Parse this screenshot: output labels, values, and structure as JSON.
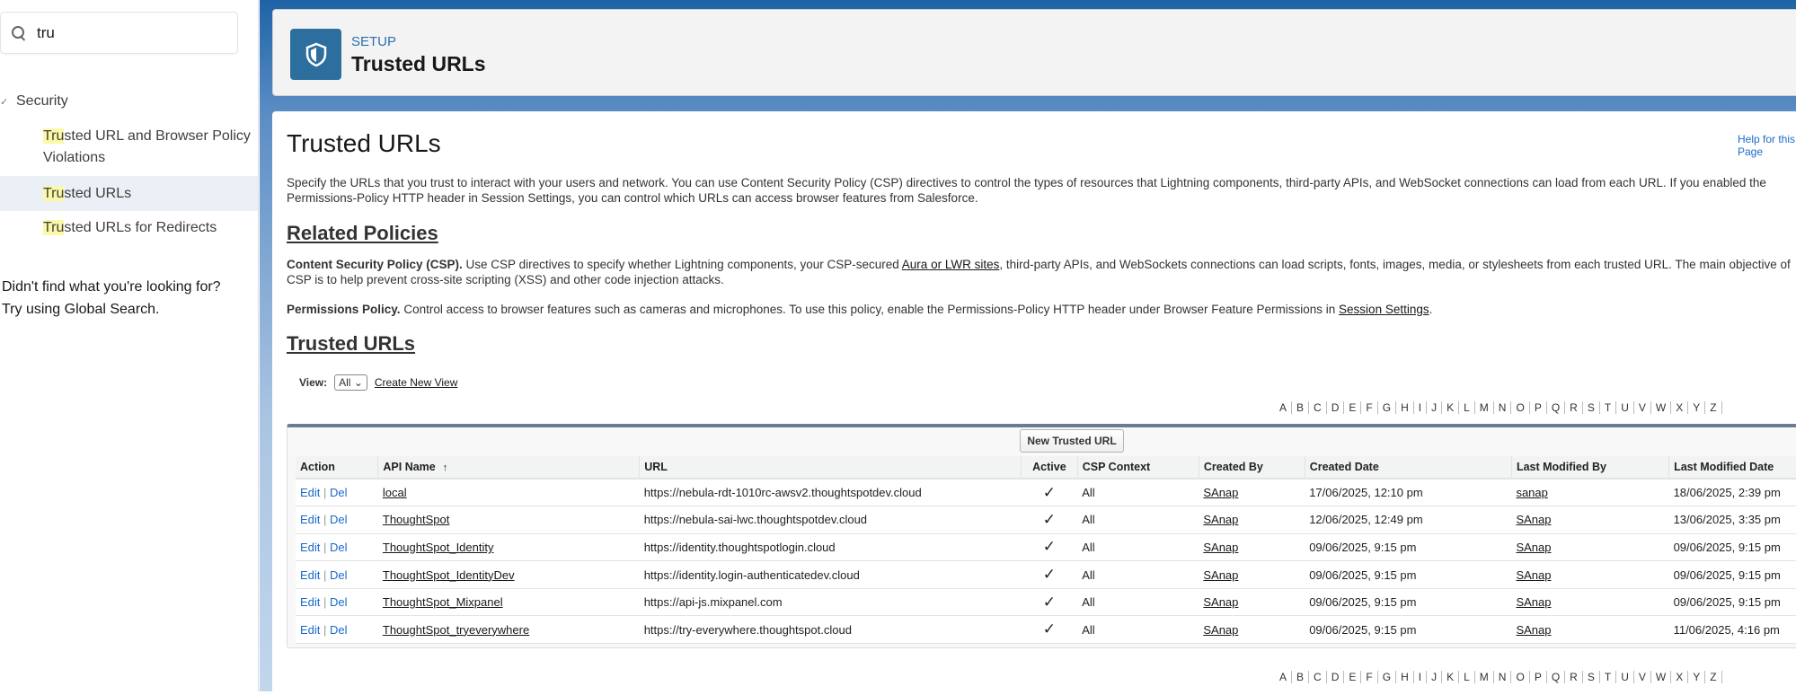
{
  "sidebar": {
    "search_value": "tru",
    "section": "Security",
    "items": [
      {
        "highlight": "Tru",
        "rest": "sted URL and Browser Policy Violations",
        "active": false
      },
      {
        "highlight": "Tru",
        "rest": "sted URLs",
        "active": true
      },
      {
        "highlight": "Tru",
        "rest": "sted URLs for Redirects",
        "active": false
      }
    ],
    "not_found_line1": "Didn't find what you're looking for?",
    "not_found_line2": "Try using Global Search."
  },
  "header": {
    "eyebrow": "SETUP",
    "title": "Trusted URLs",
    "icon": "shield-icon",
    "icon_color": "#2c6f9e"
  },
  "main": {
    "title": "Trusted URLs",
    "help_link": "Help for this Page",
    "description": "Specify the URLs that you trust to interact with your users and network. You can use Content Security Policy (CSP) directives to control the types of resources that Lightning components, third-party APIs, and WebSocket connections can load from each URL. If you enabled the Permissions-Policy HTTP header in Session Settings, you can control which URLs can access browser features from Salesforce.",
    "related_heading": "Related Policies",
    "csp_bold": "Content Security Policy (CSP).",
    "csp_text1": " Use CSP directives to specify whether Lightning components, your CSP-secured ",
    "csp_link": "Aura or LWR sites",
    "csp_text2": ", third-party APIs, and WebSockets connections can load scripts, fonts, images, media, or stylesheets from each trusted URL. The main objective of CSP is to help prevent cross-site scripting (XSS) and other code injection attacks.",
    "perm_bold": "Permissions Policy.",
    "perm_text": " Control access to browser features such as cameras and microphones. To use this policy, enable the Permissions-Policy HTTP header under Browser Feature Permissions in ",
    "perm_link": "Session Settings",
    "perm_end": ".",
    "list_heading": "Trusted URLs",
    "view_label": "View:",
    "view_selected": "All",
    "create_view": "Create New View",
    "alphabet": [
      "A",
      "B",
      "C",
      "D",
      "E",
      "F",
      "G",
      "H",
      "I",
      "J",
      "K",
      "L",
      "M",
      "N",
      "O",
      "P",
      "Q",
      "R",
      "S",
      "T",
      "U",
      "V",
      "W",
      "X",
      "Y",
      "Z"
    ],
    "new_button": "New Trusted URL",
    "columns": [
      "Action",
      "API Name",
      "URL",
      "Active",
      "CSP Context",
      "Created By",
      "Created Date",
      "Last Modified By",
      "Last Modified Date"
    ],
    "sort_indicator": "↑",
    "edit_label": "Edit",
    "del_label": "Del",
    "separator": "|",
    "rows": [
      {
        "api_name": "local",
        "url": "https://nebula-rdt-1010rc-awsv2.thoughtspotdev.cloud",
        "active": "✓",
        "csp": "All",
        "created_by": "SAnap",
        "created_date": "17/06/2025, 12:10 pm",
        "modified_by": "sanap",
        "modified_date": "18/06/2025, 2:39 pm"
      },
      {
        "api_name": "ThoughtSpot",
        "url": "https://nebula-sai-lwc.thoughtspotdev.cloud",
        "active": "✓",
        "csp": "All",
        "created_by": "SAnap",
        "created_date": "12/06/2025, 12:49 pm",
        "modified_by": "SAnap",
        "modified_date": "13/06/2025, 3:35 pm"
      },
      {
        "api_name": "ThoughtSpot_Identity",
        "url": "https://identity.thoughtspotlogin.cloud",
        "active": "✓",
        "csp": "All",
        "created_by": "SAnap",
        "created_date": "09/06/2025, 9:15 pm",
        "modified_by": "SAnap",
        "modified_date": "09/06/2025, 9:15 pm"
      },
      {
        "api_name": "ThoughtSpot_IdentityDev",
        "url": "https://identity.login-authenticatedev.cloud",
        "active": "✓",
        "csp": "All",
        "created_by": "SAnap",
        "created_date": "09/06/2025, 9:15 pm",
        "modified_by": "SAnap",
        "modified_date": "09/06/2025, 9:15 pm"
      },
      {
        "api_name": "ThoughtSpot_Mixpanel",
        "url": "https://api-js.mixpanel.com",
        "active": "✓",
        "csp": "All",
        "created_by": "SAnap",
        "created_date": "09/06/2025, 9:15 pm",
        "modified_by": "SAnap",
        "modified_date": "09/06/2025, 9:15 pm"
      },
      {
        "api_name": "ThoughtSpot_tryeverywhere",
        "url": "https://try-everywhere.thoughtspot.cloud",
        "active": "✓",
        "csp": "All",
        "created_by": "SAnap",
        "created_date": "09/06/2025, 9:15 pm",
        "modified_by": "SAnap",
        "modified_date": "11/06/2025, 4:16 pm"
      }
    ]
  }
}
